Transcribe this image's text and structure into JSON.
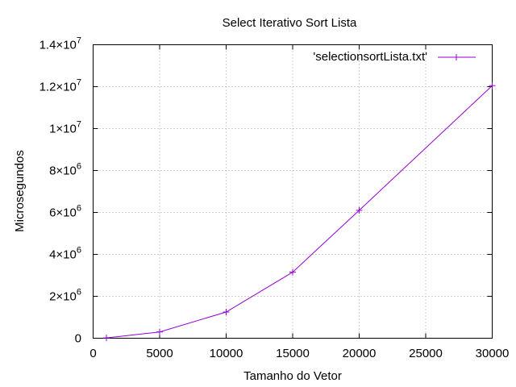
{
  "chart_data": {
    "type": "line",
    "title": "Select Iterativo Sort Lista",
    "xlabel": "Tamanho do Vetor",
    "ylabel": "Microsegundos",
    "xlim": [
      0,
      30000
    ],
    "ylim": [
      0,
      14000000
    ],
    "grid": true,
    "legend_position": "top-right",
    "x_ticks": [
      {
        "value": 0,
        "label": "0"
      },
      {
        "value": 5000,
        "label": "5000"
      },
      {
        "value": 10000,
        "label": "10000"
      },
      {
        "value": 15000,
        "label": "15000"
      },
      {
        "value": 20000,
        "label": "20000"
      },
      {
        "value": 25000,
        "label": "25000"
      },
      {
        "value": 30000,
        "label": "30000"
      }
    ],
    "y_ticks": [
      {
        "value": 0,
        "mant": "0",
        "exp": ""
      },
      {
        "value": 2000000,
        "mant": "2×10",
        "exp": "6"
      },
      {
        "value": 4000000,
        "mant": "4×10",
        "exp": "6"
      },
      {
        "value": 6000000,
        "mant": "6×10",
        "exp": "6"
      },
      {
        "value": 8000000,
        "mant": "8×10",
        "exp": "6"
      },
      {
        "value": 10000000,
        "mant": "1×10",
        "exp": "7"
      },
      {
        "value": 12000000,
        "mant": "1.2×10",
        "exp": "7"
      },
      {
        "value": 14000000,
        "mant": "1.4×10",
        "exp": "7"
      }
    ],
    "series": [
      {
        "name": "'selectionsortLista.txt'",
        "color": "#9400d3",
        "x": [
          1000,
          5000,
          10000,
          15000,
          20000,
          30000
        ],
        "y": [
          15000,
          300000,
          1250000,
          3150000,
          6100000,
          12050000
        ]
      }
    ]
  }
}
